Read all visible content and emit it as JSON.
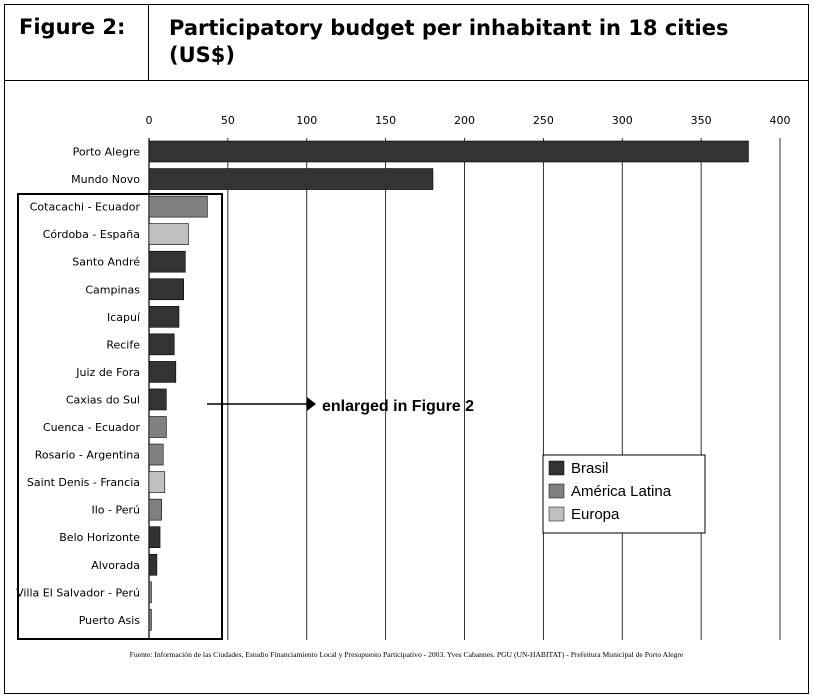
{
  "header": {
    "figure_label": "Figure 2:",
    "title": "Participatory budget per inhabitant in 18 cities (US$)"
  },
  "annotation": "enlarged in Figure 2",
  "source": "Fuente: Información de las Ciudades, Estudio Financiamiento Local y Presupuesto Participativo - 2003. Yves Cabannes. PGU (UN-HABITAT) - Prefeitura Municipal de Porto Alegre",
  "colors": {
    "Brasil": "#333333",
    "América Latina": "#808080",
    "Europa": "#c0c0c0"
  },
  "chart_data": {
    "type": "bar",
    "orientation": "horizontal",
    "title": "",
    "xlabel": "",
    "ylabel": "",
    "xlim": [
      0,
      400
    ],
    "xticks": [
      0,
      50,
      100,
      150,
      200,
      250,
      300,
      350,
      400
    ],
    "x_axis_position": "top",
    "grid": "vertical",
    "legend": {
      "placement": "right",
      "entries": [
        "Brasil",
        "América Latina",
        "Europa"
      ]
    },
    "categories": [
      "Porto Alegre",
      "Mundo Novo",
      "Cotacachi - Ecuador",
      "Córdoba - España",
      "Santo André",
      "Campinas",
      "Icapuí",
      "Recife",
      "Juiz de Fora",
      "Caxias do Sul",
      "Cuenca - Ecuador",
      "Rosario - Argentina",
      "Saint Denis - Francia",
      "Ilo - Perú",
      "Belo Horizonte",
      "Alvorada",
      "Villa El Salvador - Perú",
      "Puerto Asis"
    ],
    "values": [
      380,
      180,
      37,
      25,
      23,
      22,
      19,
      16,
      17,
      11,
      11,
      9,
      10,
      8,
      7,
      5,
      1.5,
      1.5
    ],
    "groups": [
      "Brasil",
      "Brasil",
      "América Latina",
      "Europa",
      "Brasil",
      "Brasil",
      "Brasil",
      "Brasil",
      "Brasil",
      "Brasil",
      "América Latina",
      "América Latina",
      "Europa",
      "América Latina",
      "Brasil",
      "Brasil",
      "América Latina",
      "América Latina"
    ]
  }
}
